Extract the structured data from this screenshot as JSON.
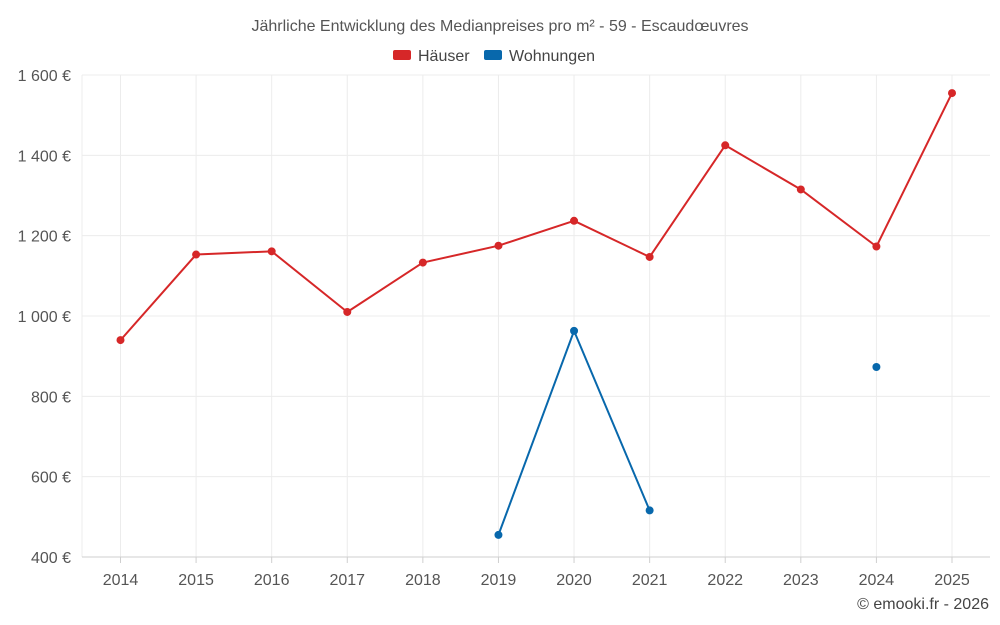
{
  "chart_data": {
    "type": "line",
    "title": "Jährliche Entwicklung des Medianpreises pro m² - 59 - Escaudœuvres",
    "categories": [
      "2014",
      "2015",
      "2016",
      "2017",
      "2018",
      "2019",
      "2020",
      "2021",
      "2022",
      "2023",
      "2024",
      "2025"
    ],
    "ylim": [
      400,
      1600
    ],
    "y_ticks": [
      400,
      600,
      800,
      1000,
      1200,
      1400,
      1600
    ],
    "y_tick_labels": [
      "400 €",
      "600 €",
      "800 €",
      "1 000 €",
      "1 200 €",
      "1 400 €",
      "1 600 €"
    ],
    "xlabel": "",
    "ylabel": "",
    "grid": true,
    "legend_position": "top-center",
    "series": [
      {
        "name": "Häuser",
        "color": "#d62728",
        "values": [
          940,
          1153,
          1161,
          1010,
          1133,
          1175,
          1237,
          1147,
          1425,
          1315,
          1173,
          1555
        ]
      },
      {
        "name": "Wohnungen",
        "color": "#0868ac",
        "values": [
          null,
          null,
          null,
          null,
          null,
          455,
          963,
          516,
          null,
          null,
          873,
          null
        ]
      }
    ],
    "credit": "© emooki.fr - 2026"
  }
}
